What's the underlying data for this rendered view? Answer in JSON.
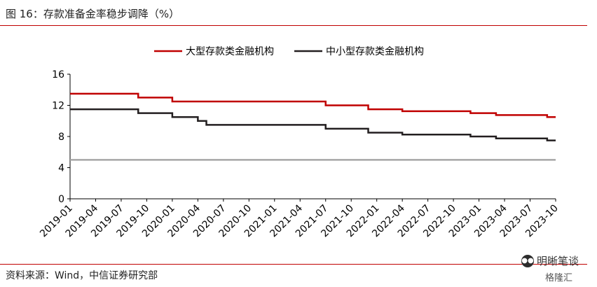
{
  "header": {
    "title": "图 16：存款准备金率稳步调降（%）"
  },
  "footer": {
    "source": "资料来源：Wind，中信证券研究部",
    "watermark_icon": "wechat-icon",
    "watermark_text": "明晰笔谈",
    "watermark_sub": "格隆汇"
  },
  "colors": {
    "large_banks": "#c00000",
    "small_banks": "#231f20",
    "reference_line": "#a6a6a6",
    "rule": "#c00000"
  },
  "chart_data": {
    "type": "line",
    "xlabel": "",
    "ylabel": "",
    "ylim": [
      0,
      16
    ],
    "yticks": [
      "0",
      "4",
      "8",
      "12",
      "16"
    ],
    "xlim": [
      "2019-01",
      "2023-10"
    ],
    "xticks": [
      "2019-01",
      "2019-04",
      "2019-07",
      "2019-10",
      "2020-01",
      "2020-04",
      "2020-07",
      "2020-10",
      "2021-01",
      "2021-04",
      "2021-07",
      "2021-10",
      "2022-01",
      "2022-04",
      "2022-07",
      "2022-10",
      "2023-01",
      "2023-04",
      "2023-07",
      "2023-10"
    ],
    "grid": false,
    "legend_position": "top-center",
    "series": [
      {
        "name": "大型存款类金融机构",
        "color": "#c00000",
        "step": true,
        "points": [
          [
            "2019-01",
            13.5
          ],
          [
            "2019-09",
            13.0
          ],
          [
            "2020-01",
            12.5
          ],
          [
            "2021-07",
            12.0
          ],
          [
            "2021-12",
            11.5
          ],
          [
            "2022-04",
            11.25
          ],
          [
            "2022-12",
            11.0
          ],
          [
            "2023-03",
            10.75
          ],
          [
            "2023-09",
            10.5
          ],
          [
            "2023-10",
            10.5
          ]
        ]
      },
      {
        "name": "中小型存款类金融机构",
        "color": "#231f20",
        "step": true,
        "points": [
          [
            "2019-01",
            11.5
          ],
          [
            "2019-09",
            11.0
          ],
          [
            "2020-01",
            10.5
          ],
          [
            "2020-04",
            10.0
          ],
          [
            "2020-05",
            9.5
          ],
          [
            "2021-07",
            9.0
          ],
          [
            "2021-12",
            8.5
          ],
          [
            "2022-04",
            8.25
          ],
          [
            "2022-12",
            8.0
          ],
          [
            "2023-03",
            7.75
          ],
          [
            "2023-09",
            7.5
          ],
          [
            "2023-10",
            7.5
          ]
        ]
      }
    ],
    "reference_line": {
      "value": 5,
      "color": "#a6a6a6"
    }
  }
}
